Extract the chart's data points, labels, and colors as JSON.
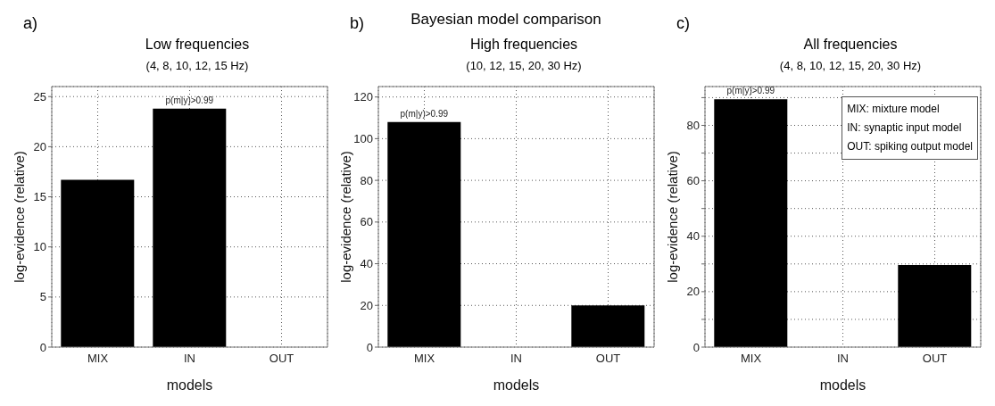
{
  "chart_data": [
    {
      "type": "bar",
      "title": "Low frequencies",
      "subtitle": "(4, 8, 10, 12, 15 Hz)",
      "xlabel": "models",
      "ylabel": "log-evidence (relative)",
      "categories": [
        "MIX",
        "IN",
        "OUT"
      ],
      "values": [
        16.7,
        23.8,
        0
      ],
      "color": "#000000",
      "ylim": [
        0,
        26
      ],
      "yticks": [
        0,
        5,
        10,
        15,
        20,
        25
      ],
      "grid": true,
      "annotations": [
        "a)",
        {
          "text": "p(m|y)>0.99",
          "x": "IN",
          "y": 23.8
        }
      ]
    },
    {
      "type": "bar",
      "title": "High frequencies",
      "subtitle": "(10, 12, 15, 20, 30 Hz)",
      "xlabel": "models",
      "ylabel": "log-evidence (relative)",
      "categories": [
        "MIX",
        "IN",
        "OUT"
      ],
      "values": [
        108,
        0,
        20
      ],
      "color": "#000000",
      "ylim": [
        0,
        125
      ],
      "yticks": [
        0,
        20,
        40,
        60,
        80,
        100,
        120
      ],
      "grid": true,
      "annotations": [
        "b)",
        "Bayesian model comparison",
        {
          "text": "p(m|y)>0.99",
          "x": "MIX",
          "y": 108
        }
      ]
    },
    {
      "type": "bar",
      "title": "All frequencies",
      "subtitle": "(4, 8, 10, 12, 15, 20, 30 Hz)",
      "xlabel": "models",
      "ylabel": "log-evidence (relative)",
      "categories": [
        "MIX",
        "IN",
        "OUT"
      ],
      "values": [
        89.4,
        0,
        29.6
      ],
      "color": "#000000",
      "ylim": [
        0,
        94
      ],
      "yticks": [
        0,
        {
          "value": 10,
          "label": null
        },
        20,
        {
          "value": 30,
          "label": null
        },
        40,
        {
          "value": 50,
          "label": null
        },
        60,
        {
          "value": 70,
          "label": null
        },
        80,
        {
          "value": 90,
          "label": null
        }
      ],
      "grid": true,
      "annotations": [
        "c)",
        "MIX: mixture model",
        "IN: synaptic input model",
        "OUT: spiking output model",
        {
          "text": "p(m|y)>0.99",
          "x": "MIX",
          "y": 89.4
        }
      ]
    }
  ]
}
